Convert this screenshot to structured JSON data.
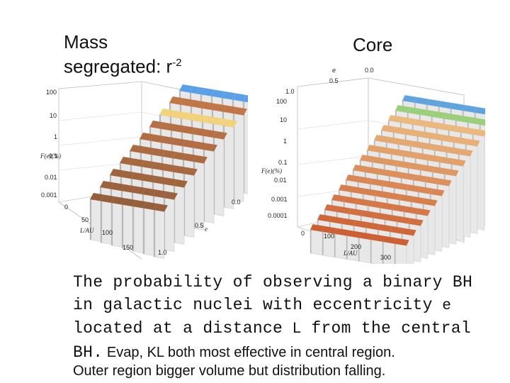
{
  "titles": {
    "left_line1": "Mass",
    "left_line2": "segregated: r",
    "left_sup": "-2",
    "right": "Core"
  },
  "left_plot": {
    "zlabel": "F(e)(%)",
    "xlabel": "L/AU",
    "ylabel": "e",
    "z_ticks": [
      "100",
      "10",
      "1",
      "0.1",
      "0.01",
      "0.001"
    ],
    "x_ticks": [
      "0",
      "50",
      "100",
      "150"
    ],
    "e_ticks": [
      "0.0",
      "0.5",
      "1.0"
    ]
  },
  "right_plot": {
    "zlabel": "F(e)(%)",
    "xlabel": "L/AU",
    "ylabel": "e",
    "z_ticks": [
      "100",
      "10",
      "1",
      "0.1",
      "0.01",
      "0.001",
      "0.0001"
    ],
    "x_ticks": [
      "0",
      "100",
      "200",
      "300"
    ],
    "e_ticks": [
      "0.0",
      "0.5",
      "1.0"
    ]
  },
  "caption": {
    "line1": "The probability of observing a binary BH",
    "line2_a": "in galactic nuclei with eccentricity ",
    "line2_b": "e",
    "line3_a": "located at a distance ",
    "line3_b": "L",
    "line3_c": " from the central",
    "line4_a": "BH.",
    "line4_b": " Evap, KL both most effective in central region.",
    "line5": "Outer region bigger volume but distribution falling."
  }
}
